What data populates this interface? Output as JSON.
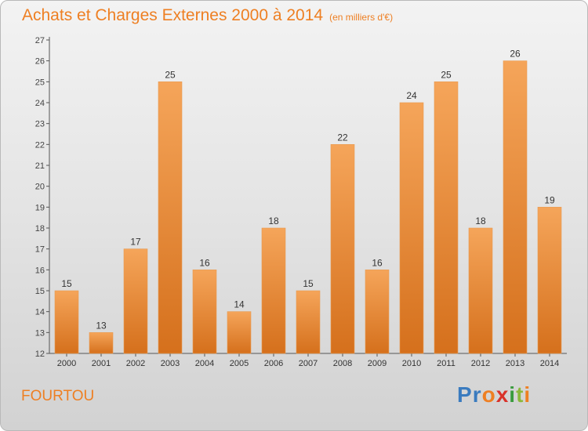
{
  "title": "Achats et Charges Externes 2000 à 2014",
  "subtitle": "(en milliers d'€)",
  "commune": "FOURTOU",
  "logo": {
    "text": "Proxiti",
    "letters": [
      "P",
      "r",
      "o",
      "x",
      "i",
      "t",
      "i"
    ],
    "colors": [
      "#3a7bbf",
      "#3a7bbf",
      "#ee7f22",
      "#d9322a",
      "#3a9b3e",
      "#8bb83b",
      "#ee7f22"
    ]
  },
  "colors": {
    "accent": "#ee7f22",
    "bar_top": "#f5a55a",
    "bar_bottom": "#d5701c"
  },
  "chart_data": {
    "type": "bar",
    "categories": [
      "2000",
      "2001",
      "2002",
      "2003",
      "2004",
      "2005",
      "2006",
      "2007",
      "2008",
      "2009",
      "2010",
      "2011",
      "2012",
      "2013",
      "2014"
    ],
    "values": [
      15,
      13,
      17,
      25,
      16,
      14,
      18,
      15,
      22,
      16,
      24,
      25,
      18,
      26,
      19
    ],
    "ylim": [
      12,
      27
    ],
    "yticks": [
      12,
      13,
      14,
      15,
      16,
      17,
      18,
      19,
      20,
      21,
      22,
      23,
      24,
      25,
      26,
      27
    ],
    "grid": false,
    "legend": "none"
  }
}
